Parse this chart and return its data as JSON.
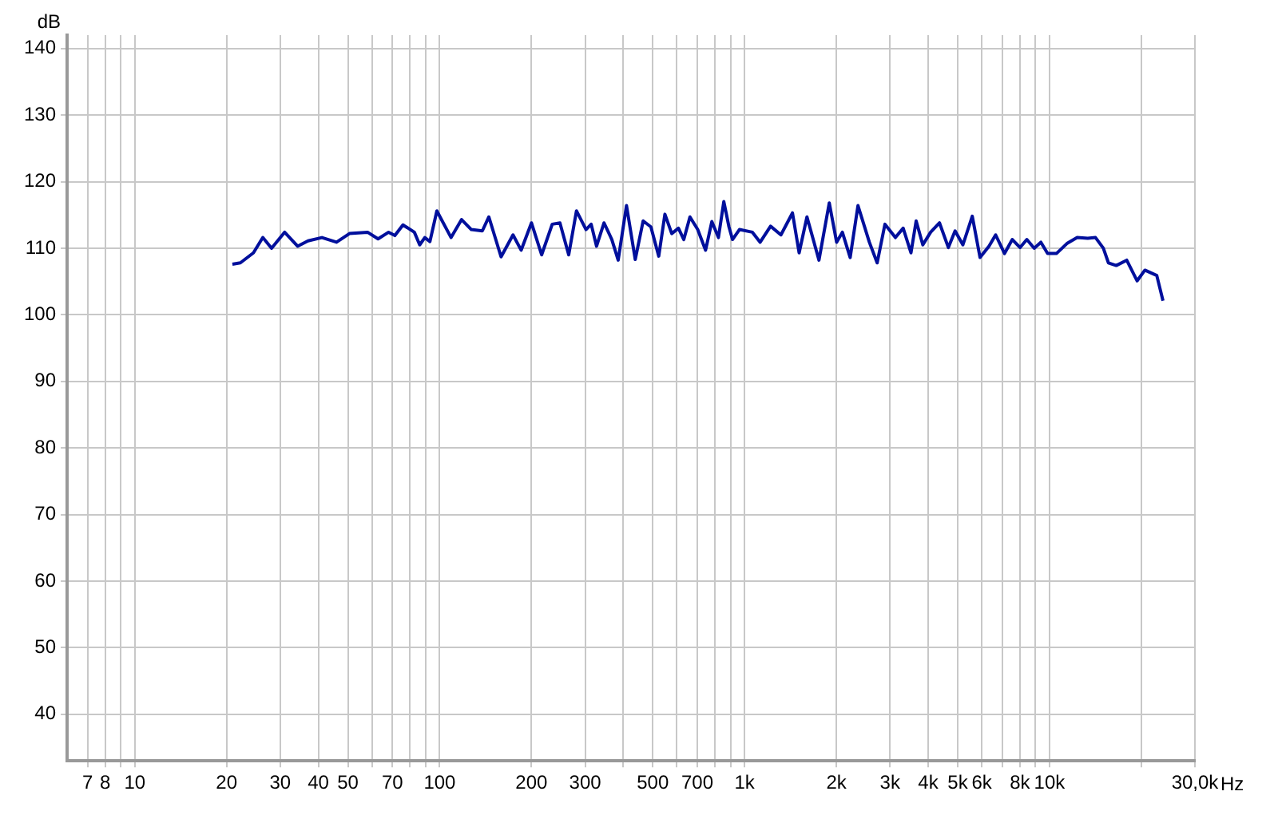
{
  "chart_data": {
    "type": "line",
    "xlabel": "Hz",
    "ylabel": "dB",
    "log": "x",
    "grid": true,
    "legend": false,
    "marker": "none",
    "line_style": "solid",
    "xlim": [
      6,
      30000
    ],
    "ylim": [
      33,
      142
    ],
    "xticks": [
      7,
      8,
      {
        "value": 9,
        "label": null
      },
      10,
      20,
      30,
      40,
      50,
      {
        "value": 60,
        "label": null
      },
      70,
      {
        "value": 80,
        "label": null
      },
      {
        "value": 90,
        "label": null
      },
      100,
      200,
      300,
      {
        "value": 400,
        "label": null
      },
      500,
      {
        "value": 600,
        "label": null
      },
      700,
      {
        "value": 800,
        "label": null
      },
      {
        "value": 900,
        "label": null
      },
      {
        "value": 1000,
        "label": "1k"
      },
      {
        "value": 2000,
        "label": "2k"
      },
      {
        "value": 3000,
        "label": "3k"
      },
      {
        "value": 4000,
        "label": "4k"
      },
      {
        "value": 5000,
        "label": "5k"
      },
      {
        "value": 6000,
        "label": "6k"
      },
      {
        "value": 7000,
        "label": null
      },
      {
        "value": 8000,
        "label": "8k"
      },
      {
        "value": 9000,
        "label": null
      },
      {
        "value": 10000,
        "label": "10k"
      },
      {
        "value": 20000,
        "label": null
      },
      {
        "value": 30000,
        "label": "30,0k"
      }
    ],
    "yticks": [
      40,
      50,
      60,
      70,
      80,
      90,
      100,
      110,
      120,
      130,
      140
    ],
    "series": [
      {
        "color": "#000f9c",
        "x": [
          20.9,
          22.2,
          24.5,
          26.3,
          28.1,
          31.0,
          34.2,
          37.0,
          41.1,
          45.9,
          50.6,
          58.0,
          62.8,
          68.0,
          71.3,
          75.8,
          82.6,
          86.0,
          89.4,
          92.9,
          97.9,
          109,
          118,
          127,
          138,
          145,
          159,
          174,
          185,
          200,
          216,
          234,
          248,
          265,
          281,
          302,
          314,
          327,
          346,
          367,
          385,
          410,
          438,
          465,
          493,
          523,
          548,
          577,
          607,
          632,
          662,
          702,
          745,
          781,
          821,
          855,
          889,
          913,
          962,
          1061,
          1125,
          1217,
          1316,
          1436,
          1510,
          1602,
          1754,
          1896,
          2004,
          2093,
          2220,
          2355,
          2566,
          2722,
          2887,
          3124,
          3313,
          3514,
          3654,
          3843,
          4076,
          4359,
          4661,
          4903,
          5201,
          5583,
          5921,
          6333,
          6660,
          7123,
          7554,
          8013,
          8430,
          8912,
          9373,
          9860,
          10540,
          11410,
          12330,
          13350,
          14160,
          15020,
          15610,
          16560,
          17920,
          19390,
          20560,
          22490,
          23570
        ],
        "values": [
          107.6,
          107.8,
          109.3,
          111.6,
          110.0,
          112.4,
          110.3,
          111.1,
          111.6,
          110.9,
          112.2,
          112.4,
          111.4,
          112.4,
          111.9,
          113.5,
          112.4,
          110.5,
          111.6,
          111.0,
          115.6,
          111.6,
          114.3,
          112.8,
          112.6,
          114.7,
          108.7,
          112.0,
          109.7,
          113.8,
          109.0,
          113.6,
          113.8,
          109.0,
          115.6,
          112.8,
          113.6,
          110.3,
          113.8,
          111.3,
          108.2,
          116.4,
          108.3,
          114.1,
          113.2,
          108.8,
          115.1,
          112.2,
          113.0,
          111.3,
          114.7,
          112.8,
          109.7,
          114.0,
          111.6,
          117.0,
          113.2,
          111.3,
          112.8,
          112.4,
          110.9,
          113.3,
          112.0,
          115.3,
          109.3,
          114.7,
          108.2,
          116.8,
          110.9,
          112.4,
          108.6,
          116.4,
          110.9,
          107.8,
          113.6,
          111.6,
          113.0,
          109.3,
          114.1,
          110.5,
          112.4,
          113.8,
          110.1,
          112.6,
          110.5,
          114.8,
          108.6,
          110.3,
          112.0,
          109.2,
          111.3,
          110.1,
          111.3,
          110.0,
          110.9,
          109.2,
          109.2,
          110.7,
          111.6,
          111.5,
          111.6,
          110.0,
          107.8,
          107.4,
          108.2,
          105.1,
          106.7,
          105.9,
          102.1
        ]
      }
    ]
  }
}
